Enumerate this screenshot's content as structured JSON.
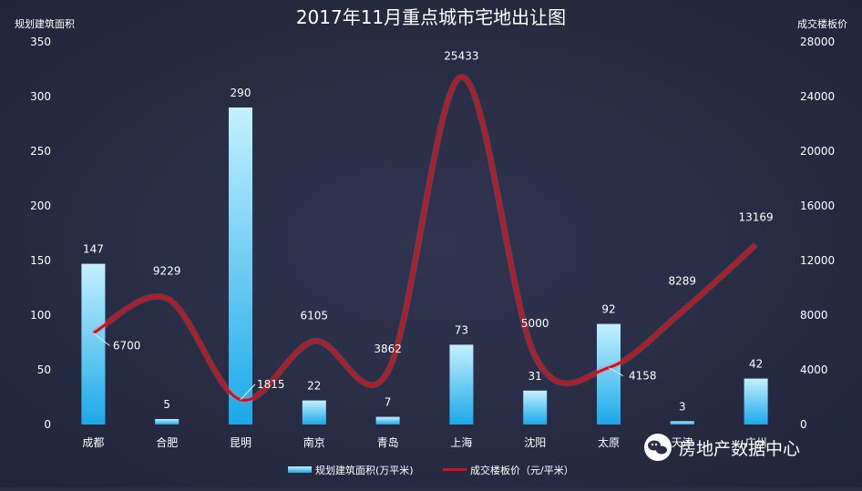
{
  "chart_data": {
    "type": "bar",
    "title": "2017年11月重点城市宅地出让图",
    "categories": [
      "成都",
      "合肥",
      "昆明",
      "南京",
      "青岛",
      "上海",
      "沈阳",
      "太原",
      "天津",
      "广州"
    ],
    "series": [
      {
        "name": "规划建筑面积(万平米)",
        "type": "bar",
        "axis": "left",
        "values": [
          147,
          5,
          290,
          22,
          7,
          73,
          31,
          92,
          3,
          42
        ]
      },
      {
        "name": "成交楼板价（元/平米）",
        "type": "line",
        "axis": "right",
        "values": [
          6700,
          9229,
          1815,
          6105,
          3862,
          25433,
          5000,
          4158,
          8289,
          13169
        ]
      }
    ],
    "ylabel_left": "规划建筑面积",
    "ylabel_right": "成交楼板价",
    "ylim_left": [
      0,
      350
    ],
    "ylim_right": [
      0,
      28000
    ],
    "yticks_left": [
      0,
      50,
      100,
      150,
      200,
      250,
      300,
      350
    ],
    "yticks_right": [
      0,
      4000,
      8000,
      12000,
      16000,
      20000,
      24000,
      28000
    ],
    "legend": "bottom",
    "grid": false,
    "colors": {
      "bar": "#29b6f0",
      "bar_light": "#b3ecff",
      "line": "#d0101a",
      "background": "#2a2d45"
    }
  },
  "watermark": {
    "text": "房地产数据中心",
    "icon": "wechat-icon"
  }
}
